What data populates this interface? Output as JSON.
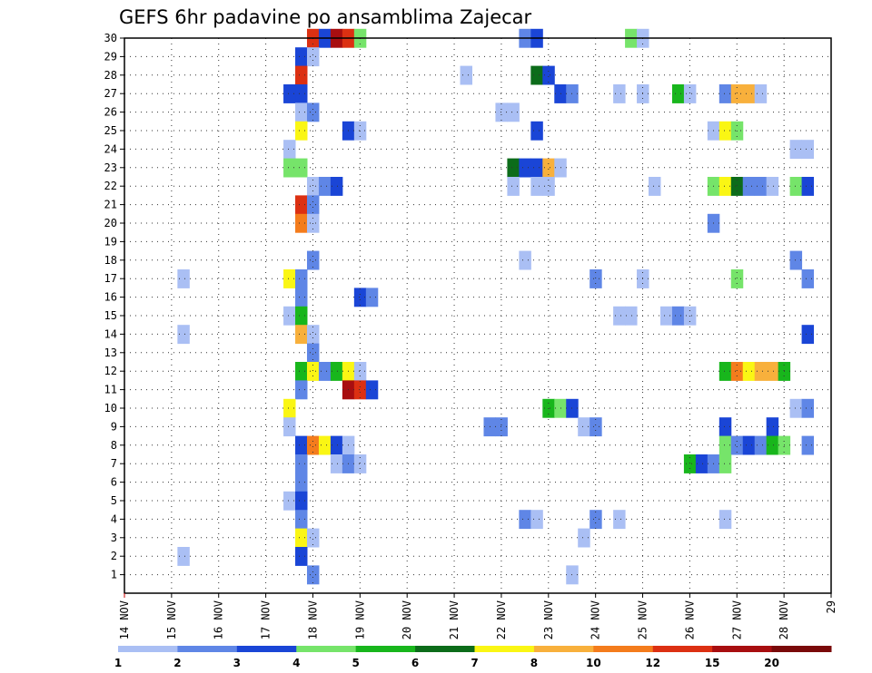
{
  "chart_data": {
    "type": "heatmap",
    "title": "GEFS 6hr padavine po ansamblima Zajecar",
    "x_labels": [
      "14 NOV",
      "15 NOV",
      "16 NOV",
      "17 NOV",
      "18 NOV",
      "19 NOV",
      "20 NOV",
      "21 NOV",
      "22 NOV",
      "23 NOV",
      "24 NOV",
      "25 NOV",
      "26 NOV",
      "27 NOV",
      "28 NOV",
      "29"
    ],
    "x_range": [
      14,
      29
    ],
    "y_labels": [
      "1",
      "2",
      "3",
      "4",
      "5",
      "6",
      "7",
      "8",
      "9",
      "10",
      "11",
      "12",
      "13",
      "14",
      "15",
      "16",
      "17",
      "18",
      "19",
      "20",
      "21",
      "22",
      "23",
      "24",
      "25",
      "26",
      "27",
      "28",
      "29",
      "30"
    ],
    "y_range": [
      0,
      30
    ],
    "grid": true,
    "colorbar": {
      "labels": [
        "1",
        "2",
        "3",
        "4",
        "5",
        "6",
        "7",
        "8",
        "10",
        "12",
        "15",
        "20"
      ],
      "colors": [
        "#aabff4",
        "#5f86e6",
        "#1a45d6",
        "#76e46a",
        "#18b61c",
        "#0c6c1a",
        "#faf614",
        "#f8b03c",
        "#f47c1c",
        "#dc3012",
        "#a80e10",
        "#7a0a0a"
      ]
    },
    "cells": [
      {
        "m": 30,
        "x": 18.0,
        "c": 9
      },
      {
        "m": 30,
        "x": 18.25,
        "c": 2
      },
      {
        "m": 30,
        "x": 18.5,
        "c": 10
      },
      {
        "m": 30,
        "x": 18.75,
        "c": 9
      },
      {
        "m": 30,
        "x": 19.0,
        "c": 3
      },
      {
        "m": 30,
        "x": 22.5,
        "c": 1
      },
      {
        "m": 30,
        "x": 22.75,
        "c": 2
      },
      {
        "m": 30,
        "x": 24.75,
        "c": 3
      },
      {
        "m": 30,
        "x": 25.0,
        "c": 0
      },
      {
        "m": 29,
        "x": 17.75,
        "c": 2
      },
      {
        "m": 29,
        "x": 18.0,
        "c": 0
      },
      {
        "m": 28,
        "x": 17.75,
        "c": 9
      },
      {
        "m": 28,
        "x": 21.25,
        "c": 0
      },
      {
        "m": 28,
        "x": 22.75,
        "c": 5
      },
      {
        "m": 28,
        "x": 23.0,
        "c": 2
      },
      {
        "m": 27,
        "x": 17.5,
        "c": 2
      },
      {
        "m": 27,
        "x": 17.75,
        "c": 2
      },
      {
        "m": 27,
        "x": 23.25,
        "c": 2
      },
      {
        "m": 27,
        "x": 23.5,
        "c": 1
      },
      {
        "m": 27,
        "x": 24.5,
        "c": 0
      },
      {
        "m": 27,
        "x": 25.0,
        "c": 0
      },
      {
        "m": 27,
        "x": 25.75,
        "c": 4
      },
      {
        "m": 27,
        "x": 26.0,
        "c": 0
      },
      {
        "m": 27,
        "x": 26.75,
        "c": 1
      },
      {
        "m": 27,
        "x": 27.0,
        "c": 7
      },
      {
        "m": 27,
        "x": 27.25,
        "c": 7
      },
      {
        "m": 27,
        "x": 27.5,
        "c": 0
      },
      {
        "m": 26,
        "x": 17.75,
        "c": 0
      },
      {
        "m": 26,
        "x": 18.0,
        "c": 1
      },
      {
        "m": 26,
        "x": 22.0,
        "c": 0
      },
      {
        "m": 26,
        "x": 22.25,
        "c": 0
      },
      {
        "m": 25,
        "x": 17.75,
        "c": 6
      },
      {
        "m": 25,
        "x": 18.75,
        "c": 2
      },
      {
        "m": 25,
        "x": 19.0,
        "c": 0
      },
      {
        "m": 25,
        "x": 22.75,
        "c": 2
      },
      {
        "m": 25,
        "x": 26.5,
        "c": 0
      },
      {
        "m": 25,
        "x": 26.75,
        "c": 6
      },
      {
        "m": 25,
        "x": 27.0,
        "c": 3
      },
      {
        "m": 24,
        "x": 17.5,
        "c": 0
      },
      {
        "m": 24,
        "x": 28.25,
        "c": 0
      },
      {
        "m": 24,
        "x": 28.5,
        "c": 0
      },
      {
        "m": 23,
        "x": 17.5,
        "c": 3
      },
      {
        "m": 23,
        "x": 17.75,
        "c": 3
      },
      {
        "m": 23,
        "x": 22.25,
        "c": 5
      },
      {
        "m": 23,
        "x": 22.5,
        "c": 2
      },
      {
        "m": 23,
        "x": 22.75,
        "c": 2
      },
      {
        "m": 23,
        "x": 23.0,
        "c": 7
      },
      {
        "m": 23,
        "x": 23.25,
        "c": 0
      },
      {
        "m": 22,
        "x": 18.0,
        "c": 0
      },
      {
        "m": 22,
        "x": 18.25,
        "c": 1
      },
      {
        "m": 22,
        "x": 18.5,
        "c": 2
      },
      {
        "m": 22,
        "x": 22.25,
        "c": 0
      },
      {
        "m": 22,
        "x": 22.75,
        "c": 0
      },
      {
        "m": 22,
        "x": 23.0,
        "c": 0
      },
      {
        "m": 22,
        "x": 25.25,
        "c": 0
      },
      {
        "m": 22,
        "x": 26.5,
        "c": 3
      },
      {
        "m": 22,
        "x": 26.75,
        "c": 6
      },
      {
        "m": 22,
        "x": 27.0,
        "c": 5
      },
      {
        "m": 22,
        "x": 27.25,
        "c": 1
      },
      {
        "m": 22,
        "x": 27.5,
        "c": 1
      },
      {
        "m": 22,
        "x": 27.75,
        "c": 0
      },
      {
        "m": 22,
        "x": 28.25,
        "c": 3
      },
      {
        "m": 22,
        "x": 28.5,
        "c": 2
      },
      {
        "m": 21,
        "x": 17.75,
        "c": 9
      },
      {
        "m": 21,
        "x": 18.0,
        "c": 1
      },
      {
        "m": 20,
        "x": 17.75,
        "c": 8
      },
      {
        "m": 20,
        "x": 18.0,
        "c": 0
      },
      {
        "m": 20,
        "x": 26.5,
        "c": 1
      },
      {
        "m": 18,
        "x": 18.0,
        "c": 1
      },
      {
        "m": 18,
        "x": 22.5,
        "c": 0
      },
      {
        "m": 18,
        "x": 28.25,
        "c": 1
      },
      {
        "m": 17,
        "x": 15.25,
        "c": 0
      },
      {
        "m": 17,
        "x": 17.5,
        "c": 6
      },
      {
        "m": 17,
        "x": 17.75,
        "c": 1
      },
      {
        "m": 17,
        "x": 24.0,
        "c": 1
      },
      {
        "m": 17,
        "x": 25.0,
        "c": 0
      },
      {
        "m": 17,
        "x": 27.0,
        "c": 3
      },
      {
        "m": 17,
        "x": 28.5,
        "c": 1
      },
      {
        "m": 16,
        "x": 17.75,
        "c": 1
      },
      {
        "m": 16,
        "x": 19.0,
        "c": 2
      },
      {
        "m": 16,
        "x": 19.25,
        "c": 1
      },
      {
        "m": 15,
        "x": 17.5,
        "c": 0
      },
      {
        "m": 15,
        "x": 17.75,
        "c": 4
      },
      {
        "m": 15,
        "x": 24.5,
        "c": 0
      },
      {
        "m": 15,
        "x": 24.75,
        "c": 0
      },
      {
        "m": 15,
        "x": 25.5,
        "c": 0
      },
      {
        "m": 15,
        "x": 25.75,
        "c": 1
      },
      {
        "m": 15,
        "x": 26.0,
        "c": 0
      },
      {
        "m": 14,
        "x": 15.25,
        "c": 0
      },
      {
        "m": 14,
        "x": 17.75,
        "c": 7
      },
      {
        "m": 14,
        "x": 18.0,
        "c": 0
      },
      {
        "m": 14,
        "x": 28.5,
        "c": 2
      },
      {
        "m": 13,
        "x": 18.0,
        "c": 1
      },
      {
        "m": 12,
        "x": 17.75,
        "c": 4
      },
      {
        "m": 12,
        "x": 18.0,
        "c": 6
      },
      {
        "m": 12,
        "x": 18.25,
        "c": 1
      },
      {
        "m": 12,
        "x": 18.5,
        "c": 4
      },
      {
        "m": 12,
        "x": 18.75,
        "c": 6
      },
      {
        "m": 12,
        "x": 19.0,
        "c": 0
      },
      {
        "m": 12,
        "x": 26.75,
        "c": 4
      },
      {
        "m": 12,
        "x": 27.0,
        "c": 8
      },
      {
        "m": 12,
        "x": 27.25,
        "c": 6
      },
      {
        "m": 12,
        "x": 27.5,
        "c": 7
      },
      {
        "m": 12,
        "x": 27.75,
        "c": 7
      },
      {
        "m": 12,
        "x": 28.0,
        "c": 4
      },
      {
        "m": 11,
        "x": 17.75,
        "c": 1
      },
      {
        "m": 11,
        "x": 18.75,
        "c": 10
      },
      {
        "m": 11,
        "x": 19.0,
        "c": 9
      },
      {
        "m": 11,
        "x": 19.25,
        "c": 2
      },
      {
        "m": 10,
        "x": 17.5,
        "c": 6
      },
      {
        "m": 10,
        "x": 23.0,
        "c": 4
      },
      {
        "m": 10,
        "x": 23.25,
        "c": 3
      },
      {
        "m": 10,
        "x": 23.5,
        "c": 2
      },
      {
        "m": 10,
        "x": 28.25,
        "c": 0
      },
      {
        "m": 10,
        "x": 28.5,
        "c": 1
      },
      {
        "m": 9,
        "x": 17.5,
        "c": 0
      },
      {
        "m": 9,
        "x": 21.75,
        "c": 1
      },
      {
        "m": 9,
        "x": 22.0,
        "c": 1
      },
      {
        "m": 9,
        "x": 23.75,
        "c": 0
      },
      {
        "m": 9,
        "x": 24.0,
        "c": 1
      },
      {
        "m": 9,
        "x": 26.75,
        "c": 2
      },
      {
        "m": 9,
        "x": 27.75,
        "c": 2
      },
      {
        "m": 8,
        "x": 17.75,
        "c": 2
      },
      {
        "m": 8,
        "x": 18.0,
        "c": 8
      },
      {
        "m": 8,
        "x": 18.25,
        "c": 6
      },
      {
        "m": 8,
        "x": 18.5,
        "c": 2
      },
      {
        "m": 8,
        "x": 18.75,
        "c": 0
      },
      {
        "m": 8,
        "x": 26.75,
        "c": 3
      },
      {
        "m": 8,
        "x": 27.0,
        "c": 1
      },
      {
        "m": 8,
        "x": 27.25,
        "c": 2
      },
      {
        "m": 8,
        "x": 27.5,
        "c": 1
      },
      {
        "m": 8,
        "x": 27.75,
        "c": 4
      },
      {
        "m": 8,
        "x": 28.0,
        "c": 3
      },
      {
        "m": 8,
        "x": 28.5,
        "c": 1
      },
      {
        "m": 7,
        "x": 17.75,
        "c": 1
      },
      {
        "m": 7,
        "x": 18.5,
        "c": 0
      },
      {
        "m": 7,
        "x": 18.75,
        "c": 1
      },
      {
        "m": 7,
        "x": 19.0,
        "c": 0
      },
      {
        "m": 7,
        "x": 26.0,
        "c": 4
      },
      {
        "m": 7,
        "x": 26.25,
        "c": 2
      },
      {
        "m": 7,
        "x": 26.5,
        "c": 1
      },
      {
        "m": 7,
        "x": 26.75,
        "c": 3
      },
      {
        "m": 6,
        "x": 17.75,
        "c": 1
      },
      {
        "m": 5,
        "x": 17.5,
        "c": 0
      },
      {
        "m": 5,
        "x": 17.75,
        "c": 2
      },
      {
        "m": 4,
        "x": 17.75,
        "c": 1
      },
      {
        "m": 4,
        "x": 22.5,
        "c": 1
      },
      {
        "m": 4,
        "x": 22.75,
        "c": 0
      },
      {
        "m": 4,
        "x": 24.0,
        "c": 1
      },
      {
        "m": 4,
        "x": 24.5,
        "c": 0
      },
      {
        "m": 4,
        "x": 26.75,
        "c": 0
      },
      {
        "m": 3,
        "x": 17.75,
        "c": 6
      },
      {
        "m": 3,
        "x": 18.0,
        "c": 0
      },
      {
        "m": 3,
        "x": 23.75,
        "c": 0
      },
      {
        "m": 2,
        "x": 15.25,
        "c": 0
      },
      {
        "m": 2,
        "x": 17.75,
        "c": 2
      },
      {
        "m": 1,
        "x": 18.0,
        "c": 1
      },
      {
        "m": 1,
        "x": 23.5,
        "c": 0
      }
    ]
  }
}
